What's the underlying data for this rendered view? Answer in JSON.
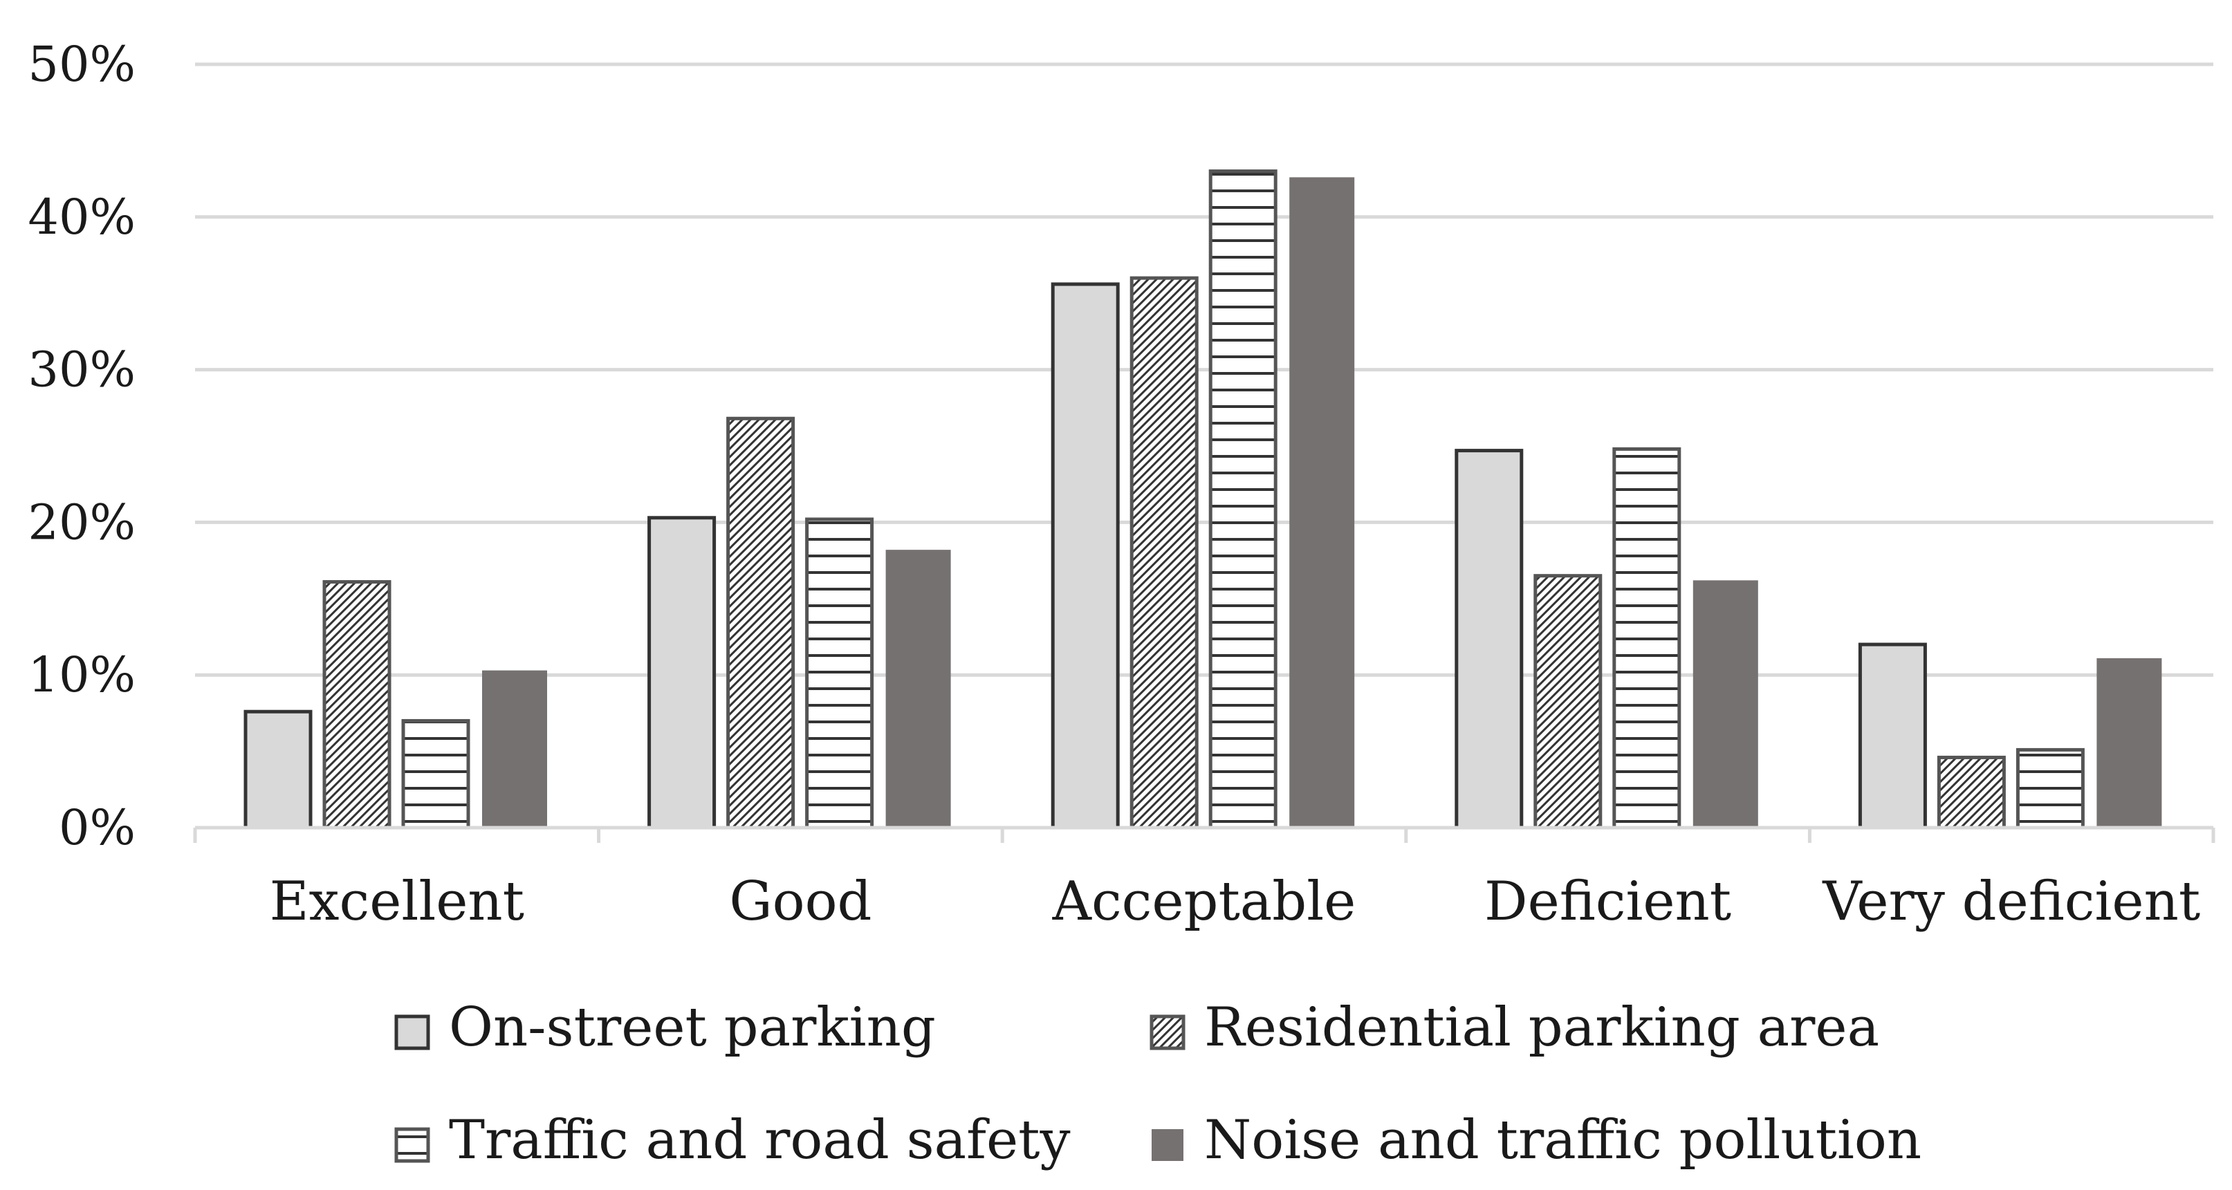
{
  "chart_data": {
    "type": "bar",
    "title": "",
    "xlabel": "",
    "ylabel": "",
    "categories": [
      "Excellent",
      "Good",
      "Acceptable",
      "Deficient",
      "Very deficient"
    ],
    "series": [
      {
        "name": "On-street parking",
        "values": [
          7.6,
          20.3,
          35.6,
          24.7,
          12.0
        ],
        "fill": "#d9d9d9",
        "stroke": "#333333",
        "pattern": "solid"
      },
      {
        "name": "Residential parking area",
        "values": [
          16.1,
          26.8,
          36.0,
          16.5,
          4.6
        ],
        "fill": "#ffffff",
        "stroke": "#555555",
        "pattern": "diagonal"
      },
      {
        "name": "Traffic and road safety",
        "values": [
          7.0,
          20.2,
          43.0,
          24.8,
          5.1
        ],
        "fill": "#ffffff",
        "stroke": "#555555",
        "pattern": "horizontal"
      },
      {
        "name": "Noise and traffic pollution",
        "values": [
          10.3,
          18.2,
          42.6,
          16.2,
          11.1
        ],
        "fill": "#767171",
        "stroke": "#767171",
        "pattern": "solid"
      }
    ],
    "ylim": [
      0,
      50
    ],
    "yticks": [
      0,
      10,
      20,
      30,
      40,
      50
    ],
    "ytick_labels": [
      "0%",
      "10%",
      "20%",
      "30%",
      "40%",
      "50%"
    ],
    "grid": true,
    "legend_position": "bottom"
  }
}
